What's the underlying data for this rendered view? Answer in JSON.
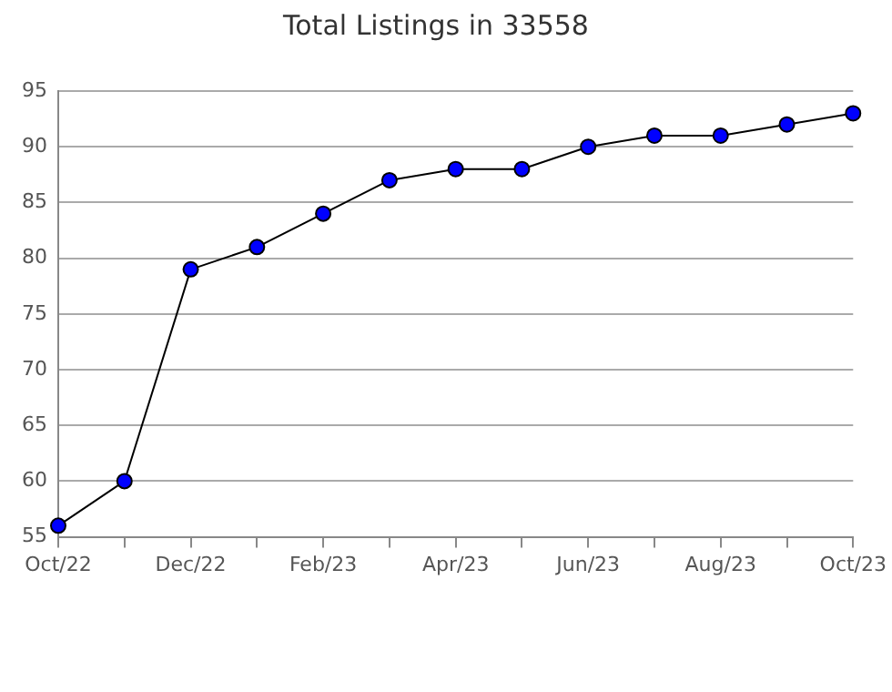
{
  "chart_data": {
    "type": "line",
    "title": "Total Listings in 33558",
    "categories": [
      "Oct/22",
      null,
      "Dec/22",
      null,
      "Feb/23",
      null,
      "Apr/23",
      null,
      "Jun/23",
      null,
      "Aug/23",
      null,
      "Oct/23"
    ],
    "series": [
      {
        "color": "#0000ff",
        "values": [
          56,
          60,
          79,
          81,
          84,
          87,
          88,
          88,
          90,
          91,
          91,
          92,
          93
        ]
      }
    ],
    "ylim": [
      55,
      95
    ],
    "yticks": [
      55,
      60,
      65,
      70,
      75,
      80,
      85,
      90,
      95
    ],
    "grid": "y",
    "legend": false,
    "marker": "circle",
    "line_style": "solid"
  }
}
